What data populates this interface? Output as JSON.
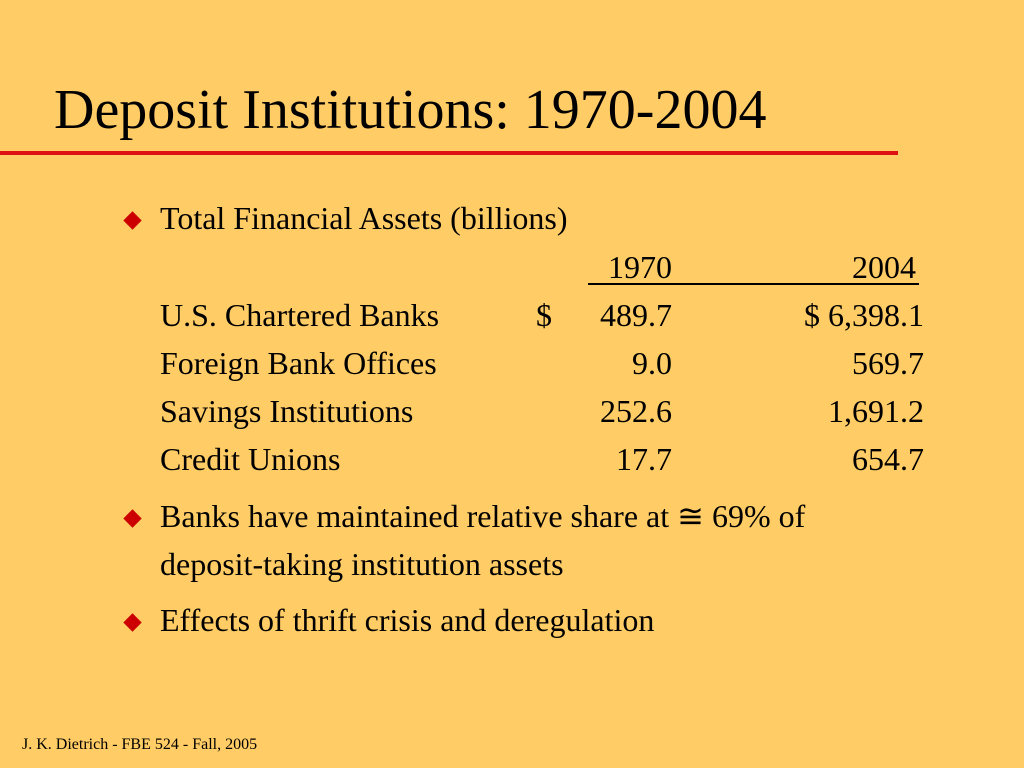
{
  "slide": {
    "title": "Deposit Institutions: 1970-2004",
    "footer": "J. K. Dietrich - FBE 524 - Fall, 2005",
    "colors": {
      "background": "#FFCC66",
      "title_rule": "#DD1111",
      "bullet": "#CC0000"
    },
    "bullet_icon": "red-diamond"
  },
  "bullets": {
    "assets_heading": "Total Financial Assets (billions)",
    "share": {
      "line1": "Banks have maintained relative share at ≅ 69% of",
      "line2": "deposit-taking institution assets"
    },
    "effects": "Effects of thrift crisis and deregulation"
  },
  "table": {
    "columns": [
      "1970",
      "2004"
    ],
    "rows": [
      {
        "label": "U.S. Chartered Banks",
        "prefix_1970": "$",
        "v1970": "489.7",
        "v2004": "$ 6,398.1"
      },
      {
        "label": "Foreign Bank Offices",
        "prefix_1970": "",
        "v1970": "9.0",
        "v2004": "569.7"
      },
      {
        "label": "Savings Institutions",
        "prefix_1970": "",
        "v1970": "252.6",
        "v2004": "1,691.2"
      },
      {
        "label": "Credit Unions",
        "prefix_1970": "",
        "v1970": "17.7",
        "v2004": "654.7"
      }
    ]
  }
}
